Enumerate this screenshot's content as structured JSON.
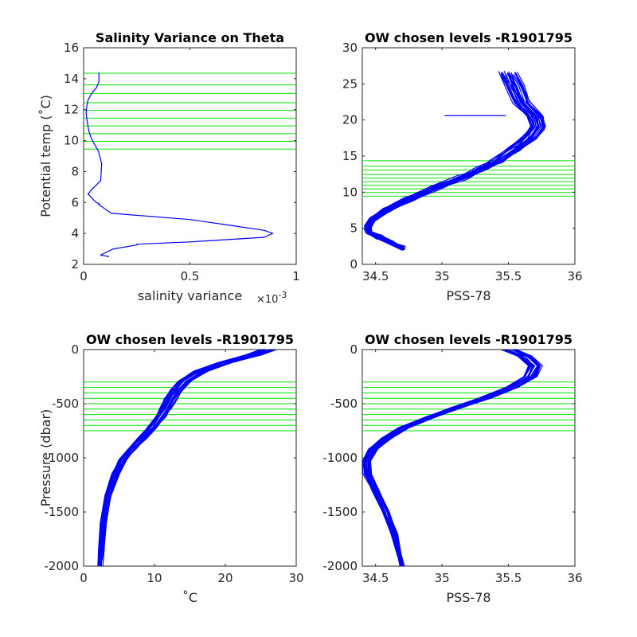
{
  "chart_data": [
    {
      "id": "p1",
      "type": "line",
      "title": "Salinity Variance on Theta",
      "xlabel": "salinity variance",
      "x_exponent_base": "×10",
      "x_exponent_power": "-3",
      "ylabel": "Potential temp (˚C)",
      "xlim": [
        0,
        1
      ],
      "ylim": [
        2,
        16
      ],
      "xticks": [
        0,
        0.5,
        1
      ],
      "xtick_labels": [
        "0",
        "0.5",
        "1"
      ],
      "yticks": [
        2,
        4,
        6,
        8,
        10,
        12,
        14,
        16
      ],
      "ytick_labels": [
        "2",
        "4",
        "6",
        "8",
        "10",
        "12",
        "14",
        "16"
      ],
      "level_orientation": "horizontal",
      "levels": [
        9.45,
        9.95,
        10.45,
        10.95,
        11.45,
        11.95,
        12.45,
        13.05,
        13.6,
        14.35
      ],
      "line_color": "#0000ff",
      "level_color": "#00e400",
      "series": [
        {
          "x": [
            0.072,
            0.072,
            0.06,
            0.04,
            0.02,
            0.015,
            0.012,
            0.015,
            0.02,
            0.025,
            0.035,
            0.05,
            0.07,
            0.085,
            0.08,
            0.05,
            0.035,
            0.03,
            0.025,
            0.02,
            0.025,
            0.045,
            0.06,
            0.07,
            0.075,
            0.07,
            0.13,
            0.5,
            0.7,
            0.85,
            0.89,
            0.85,
            0.5,
            0.25,
            0.25,
            0.14,
            0.08,
            0.12
          ],
          "y": [
            14.4,
            13.8,
            13.4,
            13.1,
            12.6,
            12.2,
            11.8,
            11.4,
            11.0,
            10.6,
            10.2,
            9.8,
            9.3,
            8.5,
            7.4,
            7.0,
            6.8,
            6.7,
            6.6,
            6.55,
            6.5,
            6.2,
            6.0,
            5.95,
            5.9,
            5.88,
            5.3,
            4.9,
            4.5,
            4.2,
            4.0,
            3.75,
            3.45,
            3.3,
            3.25,
            3.0,
            2.6,
            2.5
          ]
        }
      ]
    },
    {
      "id": "p2",
      "type": "line",
      "title": "OW chosen levels -R1901795",
      "xlabel": "PSS-78",
      "ylabel": "",
      "xlim": [
        34.4,
        36
      ],
      "ylim": [
        0,
        30
      ],
      "xticks": [
        34.5,
        35,
        35.5,
        36
      ],
      "xtick_labels": [
        "34.5",
        "35",
        "35.5",
        "36"
      ],
      "yticks": [
        0,
        5,
        10,
        15,
        20,
        25,
        30
      ],
      "ytick_labels": [
        "0",
        "5",
        "10",
        "15",
        "20",
        "25",
        "30"
      ],
      "level_orientation": "horizontal",
      "levels": [
        9.45,
        9.95,
        10.45,
        10.95,
        11.45,
        11.95,
        12.45,
        13.05,
        13.6,
        14.35
      ],
      "line_color": "#0000ff",
      "level_color": "#00e400",
      "ensemble_count": 26,
      "mean_profile": {
        "x": [
          34.71,
          34.62,
          34.52,
          34.45,
          34.44,
          34.48,
          34.58,
          34.75,
          34.95,
          35.15,
          35.3,
          35.42,
          35.55,
          35.66,
          35.72,
          35.7,
          35.6,
          35.55,
          35.5
        ],
        "y": [
          2.2,
          3.0,
          3.8,
          4.5,
          5.2,
          6.2,
          7.5,
          9.0,
          10.6,
          12.0,
          13.2,
          14.3,
          16.0,
          17.5,
          19.0,
          20.5,
          22.5,
          24.5,
          26.5
        ]
      },
      "outlier_segment": {
        "x": [
          35.02,
          35.48
        ],
        "y": [
          20.6,
          20.6
        ]
      }
    },
    {
      "id": "p3",
      "type": "line",
      "title": "OW chosen levels -R1901795",
      "xlabel": "˚C",
      "ylabel": "Pressure (dbar)",
      "xlim": [
        0,
        30
      ],
      "ylim": [
        -2000,
        0
      ],
      "xticks": [
        0,
        10,
        20,
        30
      ],
      "xtick_labels": [
        "0",
        "10",
        "20",
        "30"
      ],
      "yticks": [
        -2000,
        -1500,
        -1000,
        -500,
        0
      ],
      "ytick_labels": [
        "-2000",
        "-1500",
        "-1000",
        "-500",
        "0"
      ],
      "level_orientation": "horizontal",
      "levels": [
        -300,
        -350,
        -400,
        -450,
        -500,
        -550,
        -600,
        -650,
        -700,
        -750
      ],
      "line_color": "#0000ff",
      "level_color": "#00e400",
      "ensemble_count": 28,
      "mean_profile": {
        "x": [
          26,
          24,
          20,
          16.5,
          14.3,
          13.1,
          12.3,
          11.6,
          10.8,
          9.6,
          8.2,
          6.8,
          5.5,
          4.5,
          3.5,
          2.8,
          2.5,
          2.3
        ],
        "y": [
          0,
          -50,
          -120,
          -200,
          -290,
          -380,
          -460,
          -540,
          -620,
          -720,
          -820,
          -920,
          -1020,
          -1150,
          -1350,
          -1600,
          -1850,
          -2000
        ]
      }
    },
    {
      "id": "p4",
      "type": "line",
      "title": "OW chosen levels -R1901795",
      "xlabel": "PSS-78",
      "ylabel": "",
      "xlim": [
        34.4,
        36
      ],
      "ylim": [
        -2000,
        0
      ],
      "xticks": [
        34.5,
        35,
        35.5,
        36
      ],
      "xtick_labels": [
        "34.5",
        "35",
        "35.5",
        "36"
      ],
      "yticks": [
        -2000,
        -1500,
        -1000,
        -500,
        0
      ],
      "ytick_labels": [
        "-2000",
        "-1500",
        "-1000",
        "-500",
        "0"
      ],
      "level_orientation": "horizontal",
      "levels": [
        -300,
        -350,
        -400,
        -450,
        -500,
        -550,
        -600,
        -650,
        -700,
        -750
      ],
      "line_color": "#0000ff",
      "level_color": "#00e400",
      "ensemble_count": 28,
      "mean_profile": {
        "x": [
          35.5,
          35.62,
          35.7,
          35.66,
          35.52,
          35.32,
          35.1,
          34.9,
          34.72,
          34.58,
          34.48,
          34.43,
          34.44,
          34.5,
          34.58,
          34.64,
          34.68,
          34.7
        ],
        "y": [
          0,
          -60,
          -150,
          -250,
          -350,
          -450,
          -540,
          -630,
          -720,
          -820,
          -920,
          -1030,
          -1150,
          -1300,
          -1500,
          -1700,
          -1900,
          -2000
        ]
      }
    }
  ]
}
